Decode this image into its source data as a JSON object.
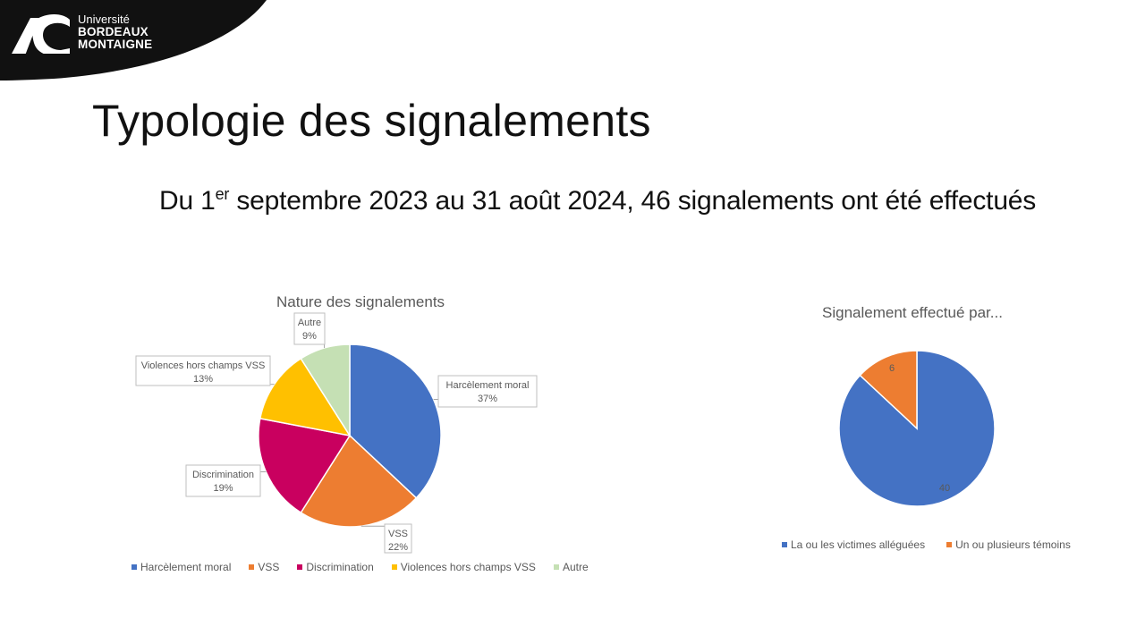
{
  "logo": {
    "line1": "Université",
    "line2": "BORDEAUX",
    "line3": "MONTAIGNE",
    "icon": "university-logo-icon"
  },
  "slide": {
    "title": "Typologie des signalements",
    "subtitle_part1": "Du 1",
    "subtitle_sup": "er",
    "subtitle_part2": " septembre 2023 au 31 août 2024, 46 signalements ont été effectués"
  },
  "chart_data": [
    {
      "type": "pie",
      "title": "Nature des signalements",
      "categories": [
        "Harcèlement moral",
        "VSS",
        "Discrimination",
        "Violences hors champs VSS",
        "Autre"
      ],
      "values": [
        37,
        22,
        19,
        13,
        9
      ],
      "labels": [
        "37%",
        "22%",
        "19%",
        "13%",
        "9%"
      ],
      "colors": [
        "#4472C4",
        "#ED7D31",
        "#C9005F",
        "#FFC000",
        "#C5E0B4"
      ],
      "legend": "bottom"
    },
    {
      "type": "pie",
      "title": "Signalement effectué par...",
      "categories": [
        "La ou les victimes alléguées",
        "Un ou plusieurs témoins"
      ],
      "values": [
        40,
        6
      ],
      "labels": [
        "40",
        "6"
      ],
      "colors": [
        "#4472C4",
        "#ED7D31"
      ],
      "legend": "bottom"
    }
  ]
}
